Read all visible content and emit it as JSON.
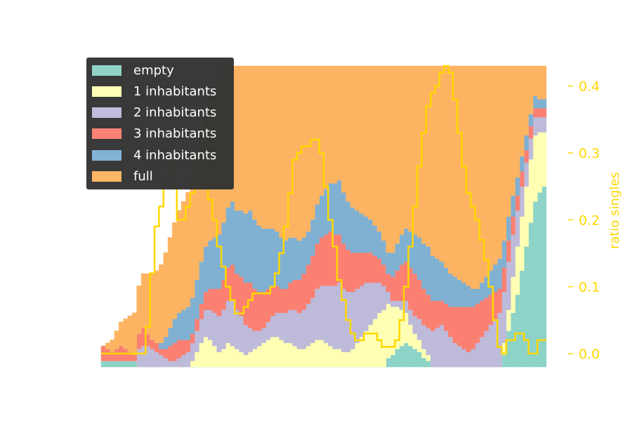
{
  "chart_data": {
    "type": "area",
    "stack_mode": "stacked step area, normalized to household count",
    "x": [
      0,
      1,
      2,
      3,
      4,
      5,
      6,
      7,
      8,
      9,
      10,
      11,
      12,
      13,
      14,
      15,
      16,
      17,
      18,
      19,
      20,
      21,
      22,
      23,
      24,
      25,
      26,
      27,
      28,
      29,
      30,
      31,
      32,
      33,
      34,
      35,
      36,
      37,
      38,
      39,
      40,
      41,
      42,
      43,
      44,
      45,
      46,
      47,
      48,
      49,
      50,
      51,
      52,
      53,
      54,
      55,
      56,
      57,
      58,
      59,
      60,
      61,
      62,
      63,
      64,
      65,
      66,
      67,
      68,
      69,
      70,
      71,
      72,
      73,
      74,
      75,
      76,
      77,
      78,
      79,
      80,
      81,
      82,
      83,
      84,
      85,
      86,
      87,
      88,
      89,
      90,
      91,
      92,
      93,
      94,
      95,
      96,
      97,
      98,
      99
    ],
    "series": [
      {
        "name": "empty",
        "color": "#8dd3c7",
        "values": [
          2,
          2,
          2,
          2,
          2,
          2,
          2,
          2,
          0,
          0,
          0,
          0,
          0,
          0,
          0,
          0,
          0,
          0,
          0,
          0,
          0,
          0,
          0,
          0,
          0,
          0,
          0,
          0,
          0,
          0,
          0,
          0,
          0,
          0,
          0,
          0,
          0,
          0,
          0,
          0,
          0,
          0,
          0,
          0,
          0,
          0,
          0,
          0,
          0,
          0,
          0,
          0,
          0,
          0,
          0,
          0,
          0,
          0,
          0,
          0,
          0,
          0,
          0,
          0,
          3,
          4,
          6,
          7,
          8,
          7,
          6,
          5,
          3,
          2,
          0,
          0,
          0,
          0,
          0,
          0,
          0,
          0,
          0,
          0,
          0,
          0,
          0,
          0,
          0,
          0,
          4,
          12,
          18,
          24,
          32,
          40,
          48,
          55,
          58,
          60
        ]
      },
      {
        "name": "1 inhabitants",
        "color": "#ffffb3",
        "values": [
          0,
          0,
          0,
          0,
          0,
          0,
          0,
          0,
          0,
          0,
          0,
          0,
          0,
          0,
          0,
          0,
          0,
          0,
          0,
          0,
          2,
          5,
          8,
          10,
          9,
          7,
          5,
          6,
          8,
          7,
          6,
          5,
          4,
          5,
          6,
          7,
          8,
          9,
          10,
          10,
          9,
          8,
          8,
          7,
          6,
          6,
          7,
          8,
          9,
          9,
          8,
          7,
          6,
          6,
          5,
          5,
          6,
          8,
          10,
          12,
          14,
          16,
          18,
          19,
          18,
          16,
          14,
          12,
          10,
          7,
          5,
          4,
          3,
          2,
          0,
          0,
          0,
          0,
          0,
          0,
          0,
          0,
          0,
          0,
          0,
          0,
          0,
          0,
          0,
          0,
          4,
          7,
          12,
          16,
          18,
          20,
          21,
          22,
          20,
          18
        ]
      },
      {
        "name": "2 inhabitants",
        "color": "#bebada",
        "values": [
          0,
          0,
          0,
          0,
          0,
          0,
          0,
          0,
          6,
          7,
          7,
          6,
          5,
          4,
          3,
          2,
          2,
          3,
          4,
          5,
          6,
          7,
          8,
          9,
          10,
          11,
          12,
          13,
          14,
          15,
          13,
          12,
          10,
          8,
          6,
          5,
          5,
          6,
          7,
          8,
          9,
          10,
          11,
          12,
          12,
          13,
          14,
          15,
          17,
          18,
          19,
          20,
          21,
          22,
          21,
          20,
          19,
          18,
          17,
          16,
          14,
          12,
          10,
          8,
          4,
          2,
          2,
          3,
          4,
          5,
          6,
          7,
          8,
          9,
          12,
          13,
          14,
          12,
          10,
          8,
          7,
          6,
          5,
          6,
          8,
          10,
          12,
          14,
          16,
          18,
          17,
          16,
          14,
          12,
          10,
          8,
          7,
          6,
          5,
          5
        ]
      },
      {
        "name": "3 inhabitants",
        "color": "#fb8072",
        "values": [
          5,
          4,
          3,
          4,
          5,
          4,
          3,
          2,
          5,
          6,
          4,
          3,
          3,
          2,
          3,
          5,
          6,
          6,
          5,
          4,
          3,
          4,
          5,
          6,
          7,
          8,
          9,
          10,
          11,
          12,
          12,
          13,
          14,
          15,
          14,
          13,
          12,
          11,
          10,
          9,
          8,
          8,
          9,
          10,
          11,
          12,
          13,
          14,
          15,
          16,
          17,
          18,
          17,
          16,
          15,
          14,
          13,
          12,
          11,
          10,
          10,
          9,
          8,
          7,
          6,
          8,
          10,
          12,
          13,
          14,
          14,
          13,
          12,
          11,
          10,
          9,
          8,
          9,
          10,
          12,
          13,
          14,
          15,
          14,
          13,
          12,
          11,
          10,
          9,
          8,
          8,
          7,
          6,
          5,
          5,
          4,
          4,
          3,
          3,
          3
        ]
      },
      {
        "name": "4 inhabitants",
        "color": "#80b1d3",
        "values": [
          0,
          0,
          0,
          0,
          0,
          0,
          0,
          0,
          0,
          0,
          0,
          0,
          0,
          2,
          4,
          6,
          8,
          9,
          10,
          11,
          12,
          13,
          14,
          15,
          16,
          17,
          18,
          19,
          20,
          21,
          21,
          22,
          23,
          24,
          23,
          22,
          21,
          20,
          19,
          18,
          17,
          16,
          15,
          14,
          13,
          12,
          11,
          12,
          13,
          14,
          15,
          16,
          17,
          18,
          17,
          16,
          15,
          14,
          13,
          12,
          11,
          10,
          9,
          8,
          7,
          8,
          9,
          10,
          11,
          12,
          13,
          14,
          15,
          16,
          15,
          14,
          13,
          12,
          11,
          10,
          9,
          8,
          7,
          6,
          5,
          6,
          7,
          8,
          9,
          10,
          9,
          8,
          7,
          6,
          5,
          5,
          4,
          4,
          3,
          3
        ]
      },
      {
        "name": "full",
        "color": "#fdb462",
        "values": [
          0,
          2,
          4,
          6,
          8,
          10,
          12,
          14,
          16,
          18,
          20,
          22,
          24,
          26,
          28,
          30,
          32,
          34,
          36,
          38,
          40,
          42,
          44,
          46,
          48,
          50,
          52,
          54,
          56,
          58,
          60,
          62,
          64,
          66,
          68,
          70,
          72,
          74,
          76,
          78,
          80,
          82,
          84,
          86,
          88,
          90,
          92,
          94,
          96,
          98,
          100,
          100,
          100,
          100,
          100,
          100,
          100,
          100,
          100,
          100,
          100,
          100,
          100,
          100,
          100,
          100,
          100,
          100,
          100,
          100,
          100,
          100,
          100,
          100,
          100,
          100,
          100,
          100,
          100,
          100,
          100,
          100,
          100,
          100,
          100,
          100,
          100,
          100,
          100,
          100,
          100,
          100,
          100,
          100,
          100,
          100,
          100,
          100,
          100,
          100
        ]
      }
    ],
    "secondary_series": {
      "name": "ratio singles",
      "color": "#ffd700",
      "values": [
        0,
        0,
        0,
        0,
        0,
        0,
        0,
        0,
        0,
        0,
        0.04,
        0.12,
        0.19,
        0.22,
        0.26,
        0.29,
        0.25,
        0.2,
        0.2,
        0.22,
        0.24,
        0.26,
        0.26,
        0.25,
        0.23,
        0.2,
        0.16,
        0.13,
        0.1,
        0.08,
        0.06,
        0.06,
        0.07,
        0.08,
        0.09,
        0.09,
        0.09,
        0.09,
        0.1,
        0.12,
        0.15,
        0.19,
        0.24,
        0.29,
        0.3,
        0.31,
        0.31,
        0.32,
        0.32,
        0.3,
        0.25,
        0.2,
        0.16,
        0.11,
        0.08,
        0.05,
        0.03,
        0.02,
        0.02,
        0.03,
        0.03,
        0.03,
        0.02,
        0.01,
        0.01,
        0.01,
        0.02,
        0.05,
        0.1,
        0.16,
        0.22,
        0.28,
        0.33,
        0.37,
        0.39,
        0.4,
        0.42,
        0.43,
        0.42,
        0.38,
        0.33,
        0.28,
        0.24,
        0.22,
        0.2,
        0.17,
        0.14,
        0.1,
        0.05,
        0.01,
        0.0,
        0.02,
        0.02,
        0.03,
        0.03,
        0.02,
        0.0,
        0.0,
        0.02,
        0.02
      ]
    },
    "right_axis": {
      "label": "ratio singles",
      "ticks": [
        0.0,
        0.1,
        0.2,
        0.3,
        0.4
      ],
      "tick_labels": [
        "0.0",
        "0.1",
        "0.2",
        "0.3",
        "0.4"
      ],
      "ylim": [
        -0.02,
        0.43
      ],
      "color": "#ffd700"
    },
    "legend": {
      "placement": "upper-left",
      "entries": [
        "empty",
        "1 inhabitants",
        "2 inhabitants",
        "3 inhabitants",
        "4 inhabitants",
        "full"
      ]
    },
    "grid": false
  }
}
